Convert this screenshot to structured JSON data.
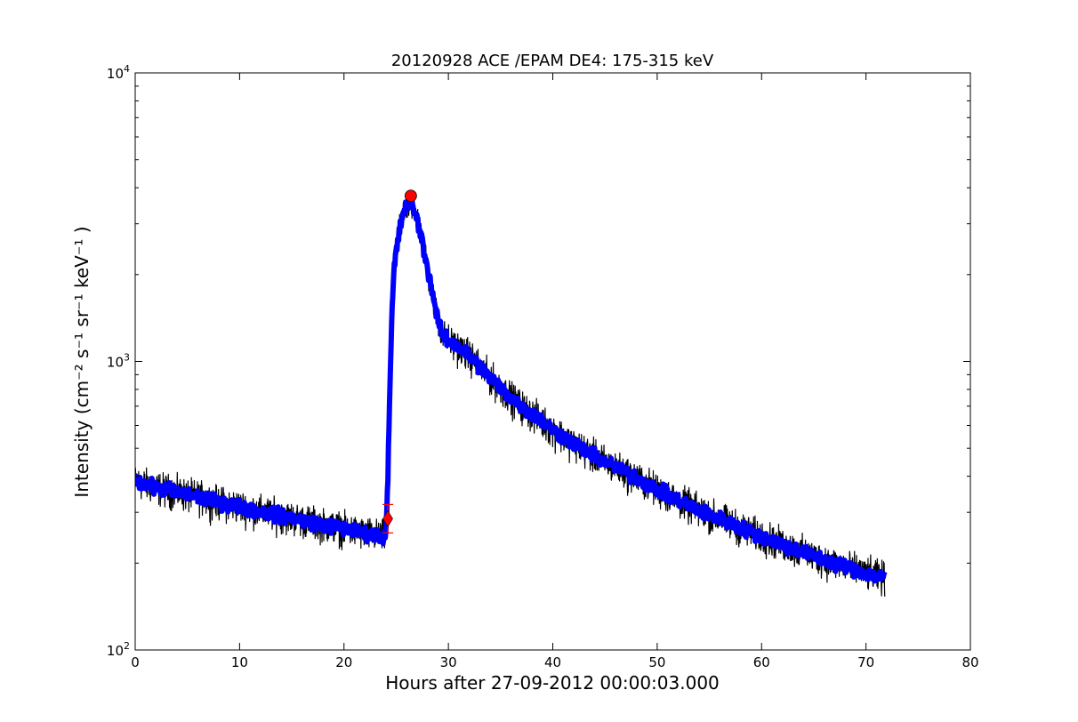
{
  "chart_data": {
    "type": "line",
    "title": "20120928 ACE /EPAM DE4: 175-315 keV",
    "xlabel": "Hours after 27-09-2012 00:00:03.000",
    "ylabel": "Intensity (cm⁻² s⁻¹ sr⁻¹ keV⁻¹ )",
    "xlim": [
      0,
      80
    ],
    "ylim": [
      100,
      10000
    ],
    "yscale": "log",
    "grid": false,
    "x_ticks": [
      0,
      10,
      20,
      30,
      40,
      50,
      60,
      70,
      80
    ],
    "y_ticks": [
      {
        "base": "10",
        "exp": "2",
        "value": 100
      },
      {
        "base": "10",
        "exp": "3",
        "value": 1000
      },
      {
        "base": "10",
        "exp": "4",
        "value": 10000
      }
    ],
    "colors": {
      "raw": "#000000",
      "smoothed": "#0000ff",
      "marker": "#ff0000"
    },
    "series": [
      {
        "role": "raw",
        "x": [
          0,
          1,
          2,
          3,
          4,
          5,
          6,
          7,
          8,
          9,
          10,
          11,
          12,
          13,
          14,
          15,
          16,
          17,
          18,
          19,
          20,
          21,
          22,
          23,
          23.8,
          24.0,
          24.2,
          24.4,
          24.6,
          24.8,
          25.0,
          25.3,
          25.6,
          26.0,
          26.4,
          26.8,
          27.2,
          27.6,
          28.0,
          28.4,
          28.8,
          29.2,
          29.6,
          30,
          31,
          32,
          33,
          34,
          35,
          36,
          37,
          38,
          39,
          40,
          42,
          44,
          46,
          48,
          50,
          52,
          54,
          56,
          58,
          60,
          62,
          64,
          66,
          68,
          70,
          71.8
        ],
        "y": [
          385,
          375,
          365,
          360,
          352,
          345,
          340,
          332,
          325,
          320,
          315,
          308,
          302,
          297,
          292,
          287,
          282,
          277,
          272,
          268,
          264,
          258,
          254,
          250,
          248,
          252,
          400,
          800,
          1500,
          2100,
          2400,
          2800,
          3200,
          3500,
          3600,
          3300,
          2900,
          2500,
          2100,
          1800,
          1500,
          1300,
          1220,
          1180,
          1120,
          1050,
          960,
          880,
          810,
          750,
          700,
          660,
          620,
          580,
          520,
          470,
          430,
          395,
          360,
          330,
          305,
          285,
          265,
          248,
          232,
          218,
          205,
          195,
          185,
          178
        ],
        "noise_fraction": 0.12
      },
      {
        "role": "smoothed",
        "x": [
          0,
          1,
          2,
          3,
          4,
          5,
          6,
          7,
          8,
          9,
          10,
          11,
          12,
          13,
          14,
          15,
          16,
          17,
          18,
          19,
          20,
          21,
          22,
          23,
          23.8,
          24.0,
          24.2,
          24.4,
          24.6,
          24.8,
          25.0,
          25.3,
          25.6,
          26.0,
          26.4,
          26.8,
          27.2,
          27.6,
          28.0,
          28.4,
          28.8,
          29.2,
          29.6,
          30,
          31,
          32,
          33,
          34,
          35,
          36,
          37,
          38,
          39,
          40,
          42,
          44,
          46,
          48,
          50,
          52,
          54,
          56,
          58,
          60,
          62,
          64,
          66,
          68,
          70,
          71.8
        ],
        "y": [
          385,
          375,
          365,
          360,
          352,
          345,
          340,
          332,
          325,
          320,
          315,
          308,
          302,
          297,
          292,
          287,
          282,
          277,
          272,
          268,
          264,
          258,
          254,
          250,
          248,
          252,
          400,
          800,
          1500,
          2100,
          2400,
          2800,
          3200,
          3500,
          3600,
          3300,
          2900,
          2500,
          2100,
          1800,
          1500,
          1300,
          1220,
          1180,
          1120,
          1050,
          960,
          880,
          810,
          750,
          700,
          660,
          620,
          580,
          520,
          470,
          430,
          395,
          360,
          330,
          305,
          285,
          265,
          248,
          232,
          218,
          205,
          195,
          185,
          178
        ],
        "noise_fraction": 0.05
      }
    ],
    "markers": [
      {
        "shape": "diamond",
        "x": 24.2,
        "y": 285
      },
      {
        "shape": "circle",
        "x": 26.4,
        "y": 3750
      }
    ]
  }
}
